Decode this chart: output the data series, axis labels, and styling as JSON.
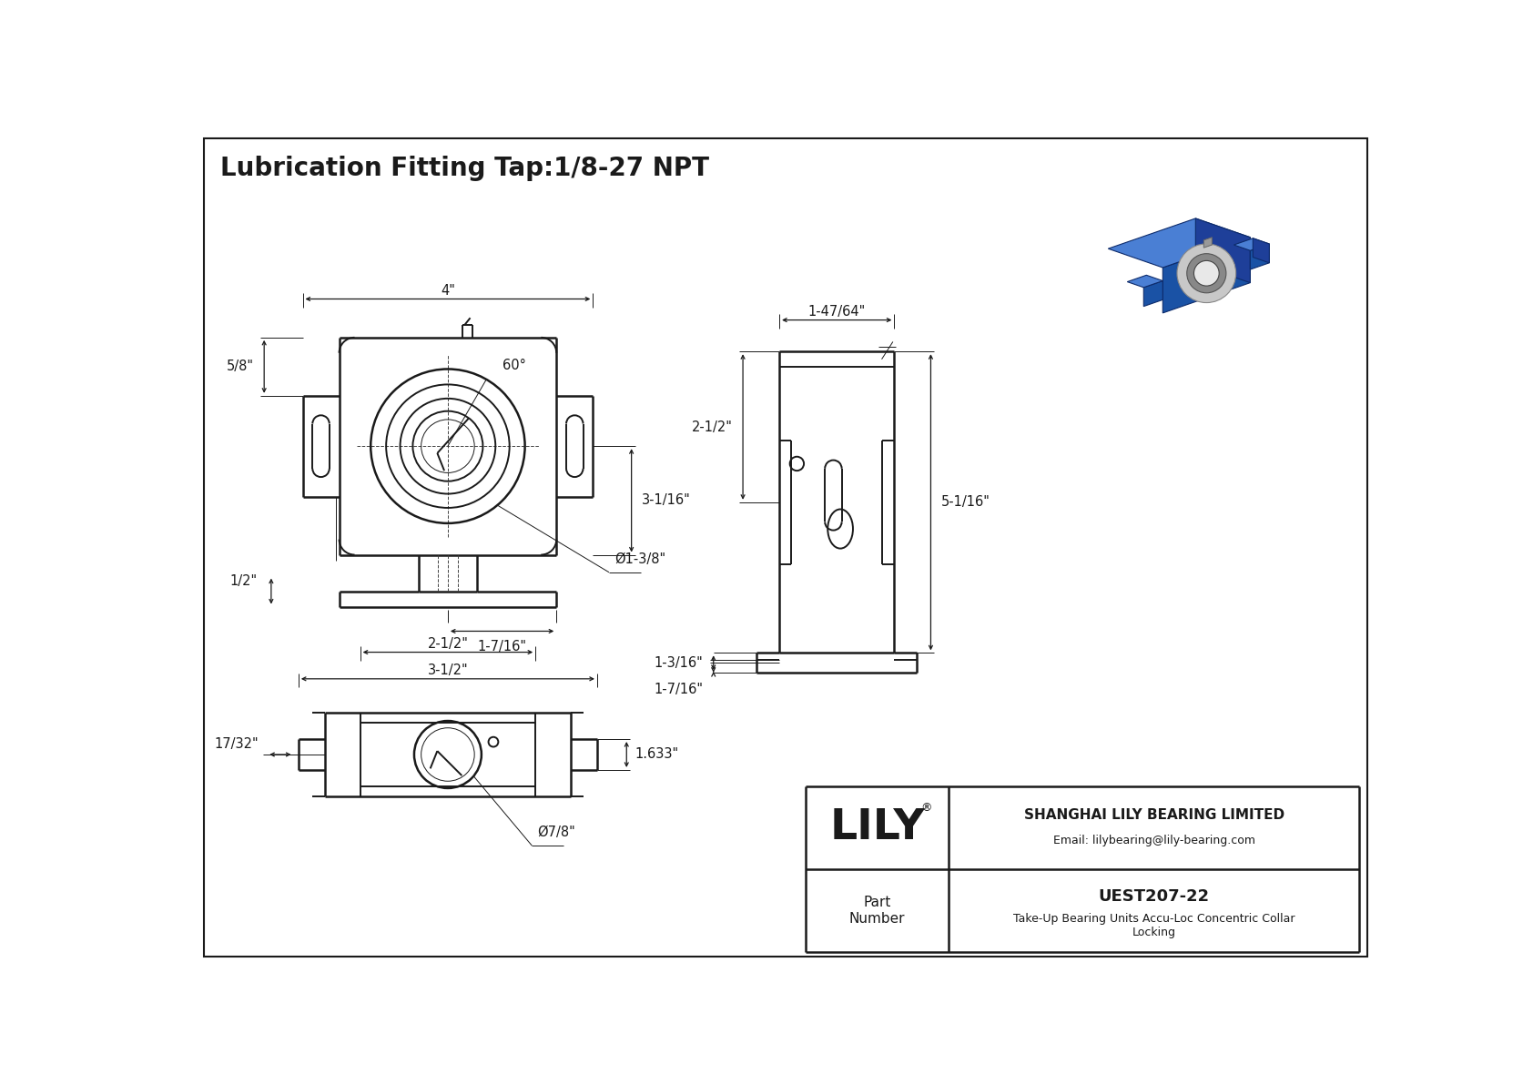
{
  "title": "Lubrication Fitting Tap:1/8-27 NPT",
  "bg_color": "#ffffff",
  "line_color": "#1a1a1a",
  "title_fontsize": 20,
  "dim_fontsize": 10.5,
  "company_name": "LILY",
  "company_reg": "®",
  "company_info1": "SHANGHAI LILY BEARING LIMITED",
  "company_info2": "Email: lilybearing@lily-bearing.com",
  "part_label": "Part\nNumber",
  "part_number": "UEST207-22",
  "part_desc": "Take-Up Bearing Units Accu-Loc Concentric Collar\nLocking",
  "dims": {
    "top_width": "4\"",
    "angle": "60°",
    "left_height": "5/8\"",
    "right_height": "3-1/16\"",
    "bottom_center": "1-7/16\"",
    "bore_dia": "Ø1-3/8\"",
    "half_inch": "1/2\"",
    "bottom_width": "3-1/2\"",
    "bottom_width2": "2-1/2\"",
    "height_bottom": "1.633\"",
    "bore_dia2": "Ø7/8\"",
    "side_width": "1-47/64\"",
    "side_height1": "2-1/2\"",
    "side_height2": "5-1/16\"",
    "side_bottom1": "1-3/16\"",
    "side_bottom2": "1-7/16\"",
    "side_left": "17/32\""
  }
}
